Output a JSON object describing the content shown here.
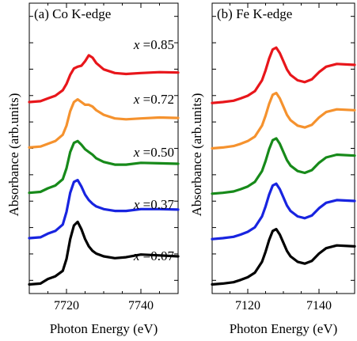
{
  "chart_data": [
    {
      "type": "line",
      "title": "(a) Co K-edge",
      "xlabel": "Photon Energy (eV)",
      "ylabel": "Absorbance (arb.units)",
      "xlim": [
        7710,
        7750
      ],
      "xticks": [
        7720,
        7740
      ],
      "x_tick_labels": [
        "7720",
        "7740"
      ],
      "y_tick_labels_shown": false,
      "y_offset_stacked": true,
      "series": [
        {
          "name": "x =0.85",
          "label_var": "x",
          "label_value": "=0.85",
          "color": "#e8161b",
          "offset": 4,
          "x": [
            7710,
            7713,
            7715,
            7717,
            7719,
            7720,
            7721,
            7722,
            7723,
            7724,
            7725,
            7726,
            7727,
            7728,
            7730,
            7733,
            7736,
            7740,
            7745,
            7750
          ],
          "y": [
            0.02,
            0.04,
            0.1,
            0.16,
            0.28,
            0.42,
            0.62,
            0.76,
            0.8,
            0.82,
            0.92,
            1.05,
            1.0,
            0.88,
            0.74,
            0.66,
            0.64,
            0.66,
            0.68,
            0.67
          ]
        },
        {
          "name": "x =0.72",
          "label_var": "x",
          "label_value": "=0.72",
          "color": "#f5922e",
          "offset": 3,
          "x": [
            7710,
            7713,
            7715,
            7717,
            7719,
            7720,
            7721,
            7722,
            7723,
            7724,
            7725,
            7726,
            7727,
            7728,
            7730,
            7733,
            7736,
            7740,
            7745,
            7750
          ],
          "y": [
            0.02,
            0.04,
            0.1,
            0.16,
            0.3,
            0.5,
            0.82,
            1.02,
            1.08,
            1.02,
            0.96,
            0.96,
            0.92,
            0.84,
            0.74,
            0.66,
            0.64,
            0.66,
            0.68,
            0.67
          ]
        },
        {
          "name": "x =0.50",
          "label_var": "x",
          "label_value": "=0.50",
          "color": "#178a1a",
          "offset": 2,
          "x": [
            7710,
            7713,
            7715,
            7717,
            7719,
            7720,
            7721,
            7722,
            7723,
            7724,
            7725,
            7726,
            7727,
            7728,
            7730,
            7733,
            7736,
            7740,
            7745,
            7750
          ],
          "y": [
            0.02,
            0.04,
            0.12,
            0.18,
            0.32,
            0.56,
            0.92,
            1.12,
            1.16,
            1.08,
            0.98,
            0.92,
            0.86,
            0.78,
            0.7,
            0.64,
            0.64,
            0.68,
            0.67,
            0.66
          ]
        },
        {
          "name": "x =0.37",
          "label_var": "x",
          "label_value": "=0.37",
          "color": "#1824e0",
          "offset": 1,
          "x": [
            7710,
            7713,
            7715,
            7717,
            7719,
            7720,
            7721,
            7722,
            7723,
            7724,
            7725,
            7726,
            7727,
            7728,
            7730,
            7733,
            7736,
            7740,
            7745,
            7750
          ],
          "y": [
            0.02,
            0.04,
            0.12,
            0.18,
            0.32,
            0.6,
            1.02,
            1.26,
            1.3,
            1.16,
            0.98,
            0.86,
            0.78,
            0.72,
            0.66,
            0.62,
            0.62,
            0.66,
            0.66,
            0.65
          ]
        },
        {
          "name": "x =0.07",
          "label_var": "x",
          "label_value": "=0.07",
          "color": "#000000",
          "offset": 0,
          "x": [
            7710,
            7713,
            7715,
            7717,
            7719,
            7720,
            7721,
            7722,
            7723,
            7724,
            7725,
            7726,
            7727,
            7728,
            7730,
            7733,
            7736,
            7740,
            7745,
            7750
          ],
          "y": [
            0.0,
            0.02,
            0.12,
            0.18,
            0.3,
            0.56,
            1.0,
            1.3,
            1.38,
            1.22,
            1.0,
            0.84,
            0.74,
            0.68,
            0.62,
            0.58,
            0.6,
            0.66,
            0.64,
            0.62
          ]
        }
      ]
    },
    {
      "type": "line",
      "title": "(b) Fe K-edge",
      "xlabel": "Photon Energy (eV)",
      "ylabel": "Absorbance (arb.units)",
      "xlim": [
        7110,
        7150
      ],
      "xticks": [
        7120,
        7140
      ],
      "x_tick_labels": [
        "7120",
        "7140"
      ],
      "y_tick_labels_shown": false,
      "y_offset_stacked": true,
      "series": [
        {
          "name": "",
          "color": "#e8161b",
          "offset": 4,
          "x": [
            7110,
            7113,
            7116,
            7118,
            7120,
            7122,
            7124,
            7125,
            7126,
            7127,
            7128,
            7129,
            7130,
            7131,
            7132,
            7134,
            7136,
            7138,
            7140,
            7142,
            7145,
            7150
          ],
          "y": [
            0.0,
            0.02,
            0.05,
            0.1,
            0.16,
            0.26,
            0.5,
            0.72,
            0.98,
            1.18,
            1.22,
            1.1,
            0.92,
            0.74,
            0.62,
            0.5,
            0.46,
            0.52,
            0.68,
            0.8,
            0.86,
            0.84
          ]
        },
        {
          "name": "",
          "color": "#f5922e",
          "offset": 3,
          "x": [
            7110,
            7113,
            7116,
            7118,
            7120,
            7122,
            7124,
            7125,
            7126,
            7127,
            7128,
            7129,
            7130,
            7131,
            7132,
            7134,
            7136,
            7138,
            7140,
            7142,
            7145,
            7150
          ],
          "y": [
            0.0,
            0.02,
            0.05,
            0.1,
            0.16,
            0.26,
            0.5,
            0.72,
            0.98,
            1.18,
            1.22,
            1.1,
            0.92,
            0.74,
            0.62,
            0.5,
            0.46,
            0.52,
            0.68,
            0.8,
            0.86,
            0.84
          ]
        },
        {
          "name": "",
          "color": "#178a1a",
          "offset": 2,
          "x": [
            7110,
            7113,
            7116,
            7118,
            7120,
            7122,
            7124,
            7125,
            7126,
            7127,
            7128,
            7129,
            7130,
            7131,
            7132,
            7134,
            7136,
            7138,
            7140,
            7142,
            7145,
            7150
          ],
          "y": [
            0.0,
            0.02,
            0.05,
            0.1,
            0.16,
            0.26,
            0.5,
            0.72,
            0.98,
            1.18,
            1.22,
            1.1,
            0.92,
            0.74,
            0.62,
            0.5,
            0.46,
            0.52,
            0.68,
            0.8,
            0.86,
            0.84
          ]
        },
        {
          "name": "",
          "color": "#1824e0",
          "offset": 1,
          "x": [
            7110,
            7113,
            7116,
            7118,
            7120,
            7122,
            7124,
            7125,
            7126,
            7127,
            7128,
            7129,
            7130,
            7131,
            7132,
            7134,
            7136,
            7138,
            7140,
            7142,
            7145,
            7150
          ],
          "y": [
            0.0,
            0.02,
            0.05,
            0.1,
            0.16,
            0.26,
            0.5,
            0.72,
            0.98,
            1.18,
            1.22,
            1.1,
            0.92,
            0.74,
            0.62,
            0.5,
            0.46,
            0.52,
            0.68,
            0.8,
            0.86,
            0.84
          ]
        },
        {
          "name": "",
          "color": "#000000",
          "offset": 0,
          "x": [
            7110,
            7113,
            7116,
            7118,
            7120,
            7122,
            7124,
            7125,
            7126,
            7127,
            7128,
            7129,
            7130,
            7131,
            7132,
            7134,
            7136,
            7138,
            7140,
            7142,
            7145,
            7150
          ],
          "y": [
            0.0,
            0.02,
            0.05,
            0.1,
            0.16,
            0.26,
            0.5,
            0.72,
            0.98,
            1.18,
            1.22,
            1.1,
            0.92,
            0.74,
            0.62,
            0.5,
            0.46,
            0.52,
            0.68,
            0.8,
            0.86,
            0.84
          ]
        }
      ]
    }
  ]
}
